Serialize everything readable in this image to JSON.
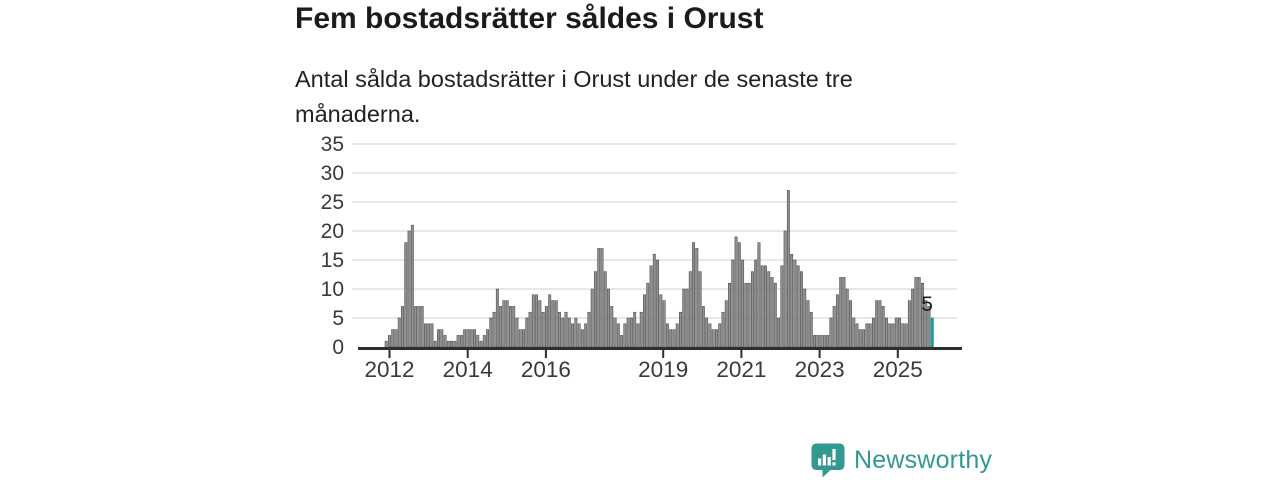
{
  "header": {
    "title": "Fem bostadsrätter såldes i Orust",
    "subtitle": "Antal sålda bostadsrätter i Orust under de senaste tre månaderna."
  },
  "branding": {
    "name": "Newsworthy",
    "icon": "newsworthy-speech-bubble-chart-icon",
    "color": "#339990"
  },
  "chart_data": {
    "type": "bar",
    "title": "Fem bostadsrätter såldes i Orust",
    "description": "Antal sålda bostadsrätter i Orust under de senaste tre månaderna.",
    "xlabel": "",
    "ylabel": "",
    "frequency": "monthly",
    "x_start": "2011-12",
    "x_end": "2025-11",
    "values": [
      1,
      2,
      3,
      3,
      5,
      7,
      18,
      20,
      21,
      7,
      7,
      7,
      4,
      4,
      4,
      1,
      3,
      3,
      2,
      1,
      1,
      1,
      2,
      2,
      3,
      3,
      3,
      3,
      2,
      1,
      2,
      3,
      5,
      6,
      10,
      7,
      8,
      8,
      7,
      7,
      5,
      3,
      3,
      5,
      6,
      9,
      9,
      8,
      6,
      7,
      9,
      8,
      8,
      6,
      5,
      6,
      5,
      4,
      5,
      4,
      3,
      4,
      6,
      10,
      13,
      17,
      17,
      13,
      10,
      7,
      5,
      4,
      2,
      4,
      5,
      5,
      6,
      4,
      6,
      9,
      11,
      14,
      16,
      15,
      9,
      8,
      4,
      3,
      3,
      4,
      6,
      10,
      10,
      13,
      18,
      17,
      13,
      7,
      5,
      4,
      3,
      3,
      4,
      6,
      8,
      11,
      15,
      19,
      18,
      15,
      11,
      11,
      13,
      15,
      18,
      14,
      14,
      13,
      12,
      11,
      5,
      14,
      20,
      27,
      16,
      15,
      14,
      13,
      10,
      8,
      6,
      2,
      2,
      2,
      2,
      2,
      5,
      7,
      9,
      12,
      12,
      10,
      8,
      5,
      4,
      3,
      3,
      4,
      4,
      5,
      8,
      8,
      7,
      5,
      4,
      4,
      5,
      5,
      4,
      4,
      8,
      10,
      12,
      12,
      11,
      8,
      7,
      5
    ],
    "highlight": {
      "position": "last",
      "value": 5,
      "label": "5",
      "color": "#17a2a2"
    },
    "bar_color": "#919191",
    "bar_stroke": "#4a4a4a",
    "xticks": [
      2012,
      2014,
      2016,
      2019,
      2021,
      2023,
      2025
    ],
    "yticks": [
      0,
      5,
      10,
      15,
      20,
      25,
      30,
      35
    ],
    "ylim": [
      0,
      35
    ],
    "grid": true,
    "grid_color": "#d9d9d9",
    "axis_color": "#2e2e2e",
    "tick_label_color": "#3a3a3a",
    "legend": "none"
  }
}
